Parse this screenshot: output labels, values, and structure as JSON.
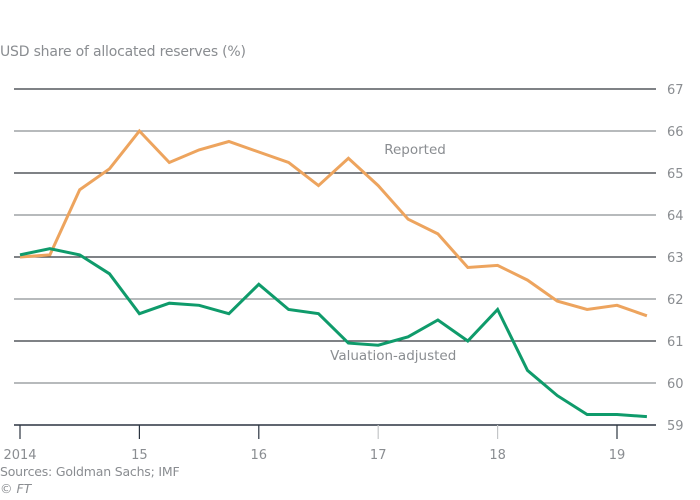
{
  "chart_data": {
    "type": "line",
    "title": "",
    "ylabel": "USD share of allocated reserves (%)",
    "xlabel": "",
    "ylim": [
      59,
      67
    ],
    "yticks": [
      59,
      60,
      61,
      62,
      63,
      64,
      65,
      66,
      67
    ],
    "xlim": [
      2014.0,
      2019.3
    ],
    "xticks": [
      {
        "value": 2014,
        "label": "2014"
      },
      {
        "value": 2015,
        "label": "15"
      },
      {
        "value": 2016,
        "label": "16"
      },
      {
        "value": 2017,
        "label": "17"
      },
      {
        "value": 2018,
        "label": "18"
      },
      {
        "value": 2019,
        "label": "19"
      }
    ],
    "grid": true,
    "x": [
      2014.0,
      2014.25,
      2014.5,
      2014.75,
      2015.0,
      2015.25,
      2015.5,
      2015.75,
      2016.0,
      2016.25,
      2016.5,
      2016.75,
      2017.0,
      2017.25,
      2017.5,
      2017.75,
      2018.0,
      2018.25,
      2018.5,
      2018.75,
      2019.0,
      2019.25
    ],
    "series": [
      {
        "name": "Reported",
        "color": "#eda45e",
        "values": [
          63.0,
          63.05,
          64.6,
          65.1,
          66.0,
          65.25,
          65.55,
          65.75,
          65.5,
          65.25,
          64.7,
          65.35,
          64.7,
          63.9,
          63.55,
          62.75,
          62.8,
          62.45,
          61.95,
          61.75,
          61.85,
          61.6
        ],
        "label_at": {
          "x": 2017.0,
          "y": 65.45
        }
      },
      {
        "name": "Valuation-adjusted",
        "color": "#0f9b6b",
        "values": [
          63.05,
          63.2,
          63.05,
          62.6,
          61.65,
          61.9,
          61.85,
          61.65,
          62.35,
          61.75,
          61.65,
          60.95,
          60.9,
          61.1,
          61.5,
          61.0,
          61.75,
          60.3,
          59.7,
          59.25,
          59.25,
          59.2
        ],
        "label_at": {
          "x": 2017.05,
          "y": 60.55
        }
      }
    ],
    "source": "Sources: Goldman Sachs; IMF",
    "copyright": "© FT"
  }
}
